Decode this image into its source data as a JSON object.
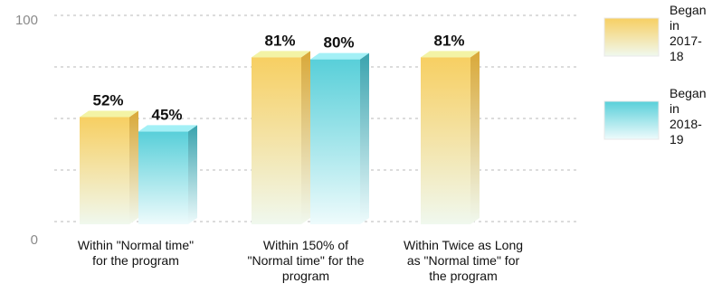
{
  "chart_data": {
    "type": "bar",
    "categories": [
      [
        "Within \"Normal time\"",
        "for the program"
      ],
      [
        "Within 150% of",
        "\"Normal time\" for the",
        "program"
      ],
      [
        "Within Twice as Long",
        "as \"Normal time\" for",
        "the program"
      ]
    ],
    "series": [
      {
        "name": "Began in 2017-18",
        "legend_lines": [
          "Began",
          "in",
          "2017-",
          "18"
        ],
        "values": [
          52,
          81,
          81
        ],
        "value_labels": [
          "52%",
          "81%",
          "81%"
        ],
        "color_top": "#f7cf62",
        "color_bottom": "#f0f8ee",
        "color_side": "#d9a838",
        "color_cap": "#f3f3a5"
      },
      {
        "name": "Began in 2018-19",
        "legend_lines": [
          "Began",
          "in",
          "2018-",
          "19"
        ],
        "values": [
          45,
          80,
          null
        ],
        "value_labels": [
          "45%",
          "80%",
          ""
        ],
        "color_top": "#58cfd9",
        "color_bottom": "#eefbfc",
        "color_side": "#3aa3ae",
        "color_cap": "#a3f0f6"
      }
    ],
    "y_ticks": [
      {
        "value": 100,
        "label": "100"
      },
      {
        "value": 0,
        "label": "0"
      }
    ],
    "ylim": [
      0,
      100
    ],
    "grid": true,
    "legend_position": "right"
  }
}
